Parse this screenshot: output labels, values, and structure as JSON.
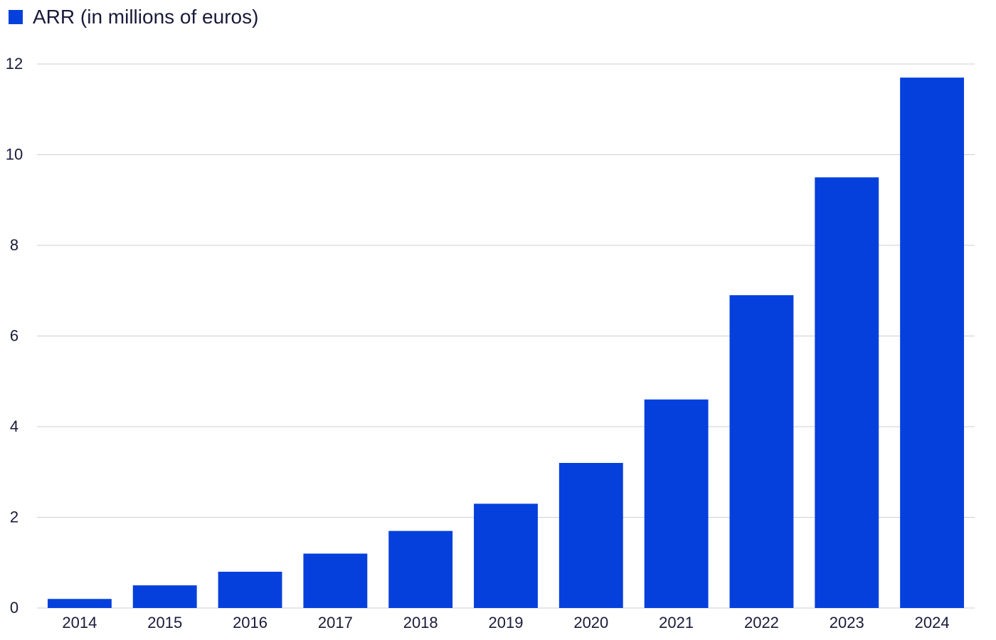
{
  "chart_data": {
    "type": "bar",
    "categories": [
      "2014",
      "2015",
      "2016",
      "2017",
      "2018",
      "2019",
      "2020",
      "2021",
      "2022",
      "2023",
      "2024"
    ],
    "series": [
      {
        "name": "ARR (in millions of euros)",
        "values": [
          0.2,
          0.5,
          0.8,
          1.2,
          1.7,
          2.3,
          3.2,
          4.6,
          6.9,
          9.5,
          11.7
        ],
        "color": "#0540dc"
      }
    ],
    "yticks": [
      "0",
      "2",
      "4",
      "6",
      "8",
      "10",
      "12"
    ],
    "ylim": [
      0,
      12
    ],
    "xlabel": "",
    "ylabel": "",
    "grid": true,
    "legend": "top-left",
    "colors": {
      "bar": "#0540dc",
      "grid": "#cfcfd6",
      "text": "#1a1a3a"
    }
  }
}
